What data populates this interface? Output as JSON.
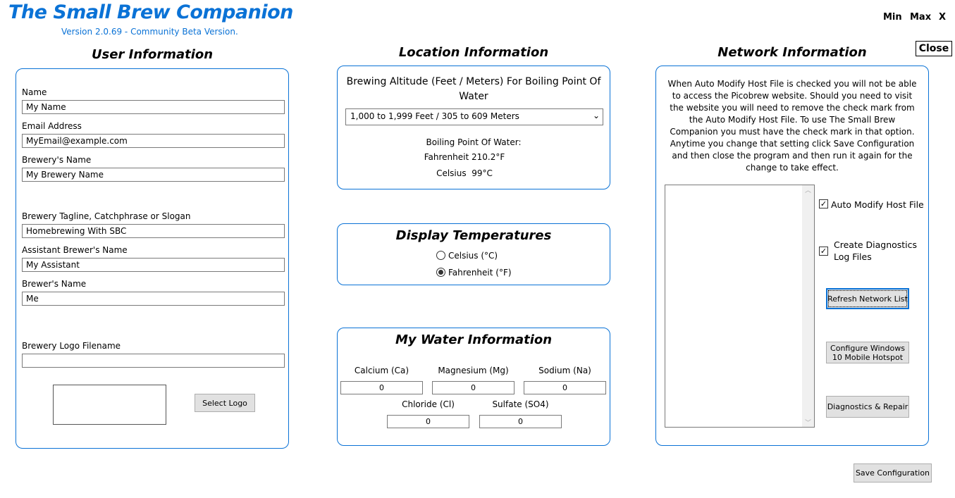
{
  "app": {
    "title": "The Small Brew Companion",
    "version": "Version 2.0.69 - Community Beta Version.",
    "min": "Min",
    "max": "Max",
    "x": "X",
    "close": "Close",
    "accent": "#0a72d6"
  },
  "user": {
    "heading": "User Information",
    "name_label": "Name",
    "name": "My Name",
    "email_label": "Email Address",
    "email": "MyEmail@example.com",
    "brewery_label": "Brewery's Name",
    "brewery": "My Brewery Name",
    "tagline_label": "Brewery Tagline, Catchphrase or Slogan",
    "tagline": "Homebrewing With SBC",
    "assistant_label": "Assistant Brewer's Name",
    "assistant": "My Assistant",
    "brewer_label": "Brewer's Name",
    "brewer": "Me",
    "logo_label": "Brewery Logo Filename",
    "logo": "",
    "select_logo": "Select Logo"
  },
  "location": {
    "heading": "Location Information",
    "altitude_label": "Brewing Altitude (Feet / Meters) For Boiling Point Of Water",
    "altitude": "1,000 to 1,999 Feet / 305 to 609 Meters",
    "bp_label": "Boiling Point Of Water:",
    "fahrenheit": "Fahrenheit 210.2°F",
    "celsius": "Celsius  99°C"
  },
  "display": {
    "heading": "Display Temperatures",
    "celsius": "Celsius (°C)",
    "fahrenheit": "Fahrenheit (°F)",
    "selected": "fahrenheit"
  },
  "water": {
    "heading": "My Water Information",
    "calcium_label": "Calcium (Ca)",
    "calcium": "0",
    "magnesium_label": "Magnesium (Mg)",
    "magnesium": "0",
    "sodium_label": "Sodium (Na)",
    "sodium": "0",
    "chloride_label": "Chloride (Cl)",
    "chloride": "0",
    "sulfate_label": "Sulfate (SO4)",
    "sulfate": "0"
  },
  "network": {
    "heading": "Network Information",
    "info": "When Auto Modify Host File is checked you will not be able to access the Picobrew website.  Should you need to visit the website you will need to remove the check mark from the Auto Modify Host File.  To use The Small Brew Companion you must have the check mark in that option. Anytime you change that setting click Save Configuration and then close the program and then run it again for the change to take effect.",
    "auto_modify": "Auto Modify Host File",
    "auto_modify_checked": true,
    "diagnostics_log": "Create Diagnostics Log Files",
    "diagnostics_log_checked": true,
    "refresh": "Refresh Network List",
    "hotspot": "Configure Windows 10 Mobile Hotspot",
    "repair": "Diagnostics & Repair"
  },
  "save": "Save Configuration"
}
